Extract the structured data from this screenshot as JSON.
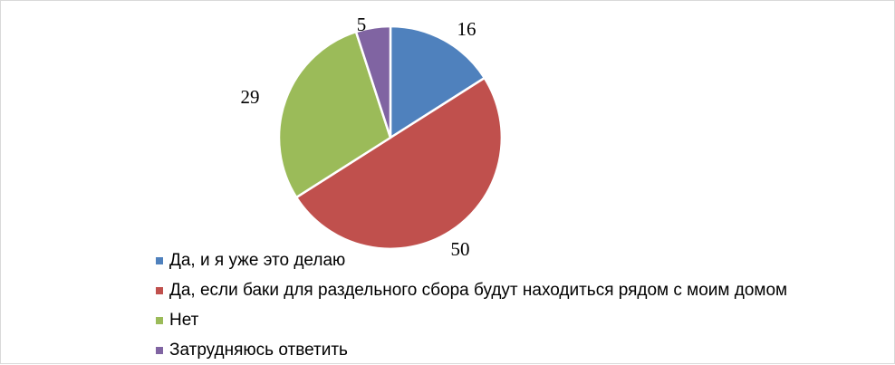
{
  "chart_data": {
    "type": "pie",
    "categories": [
      "Да, и я уже это делаю",
      "Да, если баки для раздельного сбора будут находиться рядом с моим домом",
      "Нет",
      "Затрудняюсь ответить"
    ],
    "values": [
      16,
      50,
      29,
      5
    ],
    "colors": [
      "#4f81bd",
      "#c0504d",
      "#9bbb59",
      "#8064a2"
    ],
    "title": "",
    "legend_position": "bottom-left",
    "start_angle": "12 o'clock, clockwise"
  }
}
